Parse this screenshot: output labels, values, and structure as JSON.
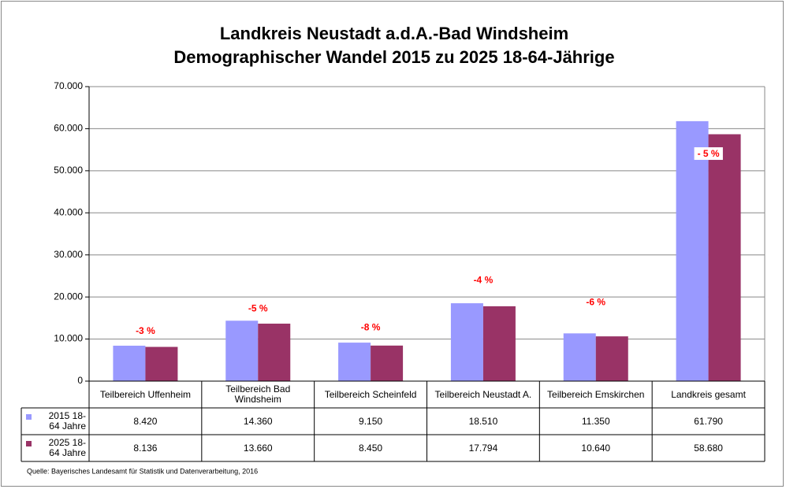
{
  "chart_data": {
    "type": "bar",
    "title": "Landkreis Neustadt a.d.A.-Bad Windsheim",
    "subtitle": "Demographischer Wandel 2015 zu 2025 18-64-Jährige",
    "categories": [
      "Teilbereich Uffenheim",
      "Teilbereich Bad Windsheim",
      "Teilbereich Scheinfeld",
      "Teilbereich Neustadt A.",
      "Teilbereich Emskirchen",
      "Landkreis gesamt"
    ],
    "series": [
      {
        "name": "2015 18-64 Jahre",
        "color": "#9999ff",
        "values": [
          8420,
          14360,
          9150,
          18510,
          11350,
          61790
        ],
        "value_labels": [
          "8.420",
          "14.360",
          "9.150",
          "18.510",
          "11.350",
          "61.790"
        ]
      },
      {
        "name": "2025 18-64 Jahre",
        "color": "#993366",
        "values": [
          8136,
          13660,
          8450,
          17794,
          10640,
          58680
        ],
        "value_labels": [
          "8.136",
          "13.660",
          "8.450",
          "17.794",
          "10.640",
          "58.680"
        ]
      }
    ],
    "annotations": [
      "-3 %",
      "-5 %",
      "-8 %",
      "-4 %",
      "-6 %",
      "- 5 %"
    ],
    "ylim": [
      0,
      70000
    ],
    "yticks": [
      0,
      {
        "value": 10000,
        "label": "10.000"
      },
      {
        "value": 20000,
        "label": "20.000"
      },
      {
        "value": 30000,
        "label": "30.000"
      },
      {
        "value": 40000,
        "label": "40.000"
      },
      {
        "value": 50000,
        "label": "50.000"
      },
      {
        "value": 60000,
        "label": "60.000"
      },
      {
        "value": 70000,
        "label": "70.000"
      }
    ],
    "grid": true,
    "source": "Quelle:  Bayerisches Landesamt  für Statistik und Datenverarbeitung,  2016"
  }
}
